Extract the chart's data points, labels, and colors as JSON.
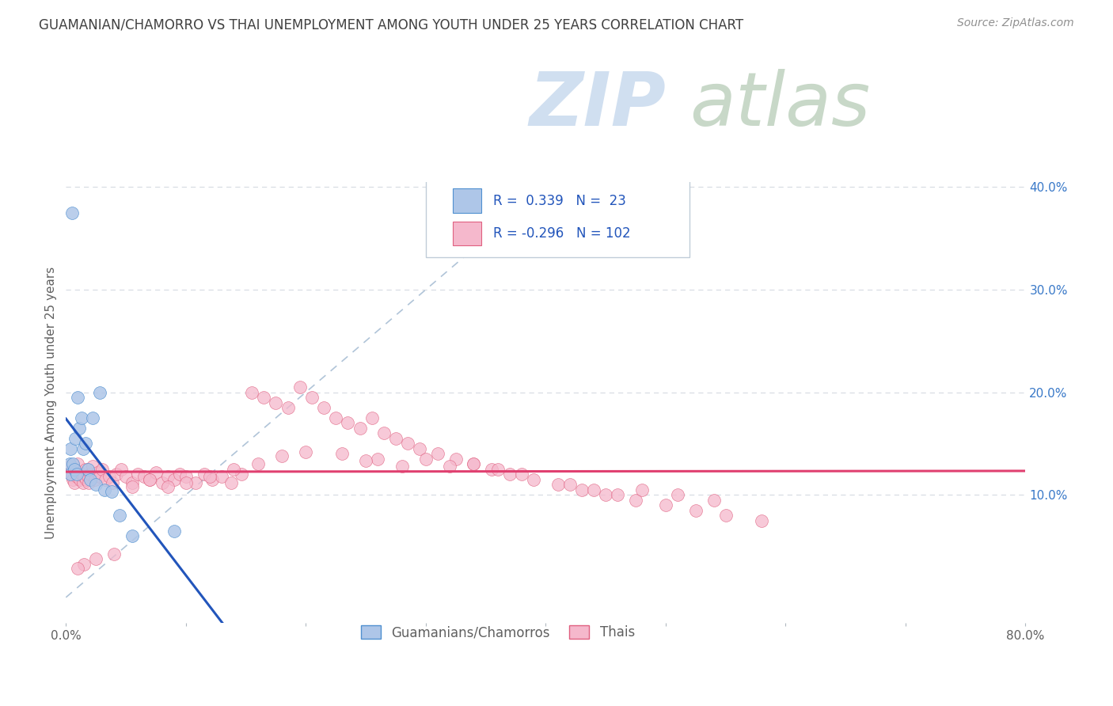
{
  "title": "GUAMANIAN/CHAMORRO VS THAI UNEMPLOYMENT AMONG YOUTH UNDER 25 YEARS CORRELATION CHART",
  "source": "Source: ZipAtlas.com",
  "ylabel": "Unemployment Among Youth under 25 years",
  "guamanian_R": 0.339,
  "guamanian_N": 23,
  "thai_R": -0.296,
  "thai_N": 102,
  "guamanian_color": "#aec6e8",
  "guamanian_edge_color": "#5090d0",
  "guamanian_line_color": "#2255bb",
  "thai_color": "#f5b8cc",
  "thai_edge_color": "#e06080",
  "thai_line_color": "#e04070",
  "watermark_zip_color": "#d0dff0",
  "watermark_atlas_color": "#c8d8c8",
  "background_color": "#ffffff",
  "title_color": "#404040",
  "source_color": "#909090",
  "grid_color": "#d8dde4",
  "xmin": 0.0,
  "xmax": 0.8,
  "ymin": -0.025,
  "ymax": 0.405,
  "yticks": [
    0.1,
    0.2,
    0.3,
    0.4
  ],
  "ytick_labels": [
    "10.0%",
    "20.0%",
    "30.0%",
    "40.0%"
  ],
  "gx": [
    0.003,
    0.004,
    0.004,
    0.005,
    0.006,
    0.007,
    0.008,
    0.009,
    0.01,
    0.011,
    0.013,
    0.014,
    0.016,
    0.018,
    0.02,
    0.022,
    0.025,
    0.028,
    0.032,
    0.038,
    0.045,
    0.055,
    0.09
  ],
  "gy": [
    0.13,
    0.12,
    0.145,
    0.375,
    0.13,
    0.125,
    0.155,
    0.12,
    0.195,
    0.165,
    0.175,
    0.145,
    0.15,
    0.125,
    0.115,
    0.175,
    0.11,
    0.2,
    0.105,
    0.103,
    0.08,
    0.06,
    0.065
  ],
  "tx": [
    0.003,
    0.004,
    0.005,
    0.006,
    0.007,
    0.008,
    0.009,
    0.01,
    0.011,
    0.012,
    0.013,
    0.014,
    0.015,
    0.016,
    0.017,
    0.018,
    0.019,
    0.02,
    0.022,
    0.024,
    0.026,
    0.028,
    0.03,
    0.033,
    0.036,
    0.039,
    0.042,
    0.046,
    0.05,
    0.055,
    0.06,
    0.065,
    0.07,
    0.075,
    0.08,
    0.085,
    0.09,
    0.095,
    0.1,
    0.108,
    0.115,
    0.122,
    0.13,
    0.138,
    0.146,
    0.155,
    0.165,
    0.175,
    0.185,
    0.195,
    0.205,
    0.215,
    0.225,
    0.235,
    0.245,
    0.255,
    0.265,
    0.275,
    0.285,
    0.295,
    0.31,
    0.325,
    0.34,
    0.355,
    0.37,
    0.39,
    0.41,
    0.43,
    0.45,
    0.475,
    0.5,
    0.525,
    0.55,
    0.58,
    0.48,
    0.51,
    0.54,
    0.42,
    0.44,
    0.46,
    0.34,
    0.36,
    0.38,
    0.3,
    0.32,
    0.26,
    0.28,
    0.23,
    0.25,
    0.2,
    0.18,
    0.16,
    0.14,
    0.12,
    0.1,
    0.085,
    0.07,
    0.055,
    0.04,
    0.025,
    0.015,
    0.01
  ],
  "ty": [
    0.128,
    0.122,
    0.118,
    0.115,
    0.112,
    0.125,
    0.118,
    0.13,
    0.122,
    0.115,
    0.12,
    0.112,
    0.118,
    0.125,
    0.115,
    0.118,
    0.112,
    0.12,
    0.128,
    0.115,
    0.122,
    0.118,
    0.125,
    0.115,
    0.118,
    0.112,
    0.12,
    0.125,
    0.118,
    0.112,
    0.12,
    0.118,
    0.115,
    0.122,
    0.112,
    0.118,
    0.115,
    0.12,
    0.118,
    0.112,
    0.12,
    0.115,
    0.118,
    0.112,
    0.12,
    0.2,
    0.195,
    0.19,
    0.185,
    0.205,
    0.195,
    0.185,
    0.175,
    0.17,
    0.165,
    0.175,
    0.16,
    0.155,
    0.15,
    0.145,
    0.14,
    0.135,
    0.13,
    0.125,
    0.12,
    0.115,
    0.11,
    0.105,
    0.1,
    0.095,
    0.09,
    0.085,
    0.08,
    0.075,
    0.105,
    0.1,
    0.095,
    0.11,
    0.105,
    0.1,
    0.13,
    0.125,
    0.12,
    0.135,
    0.128,
    0.135,
    0.128,
    0.14,
    0.133,
    0.142,
    0.138,
    0.13,
    0.125,
    0.118,
    0.112,
    0.108,
    0.115,
    0.108,
    0.042,
    0.038,
    0.032,
    0.028
  ]
}
